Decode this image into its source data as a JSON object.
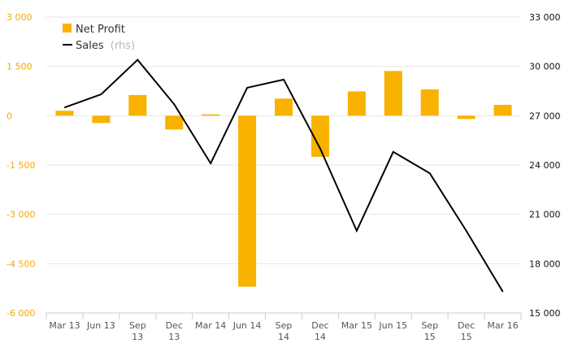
{
  "colors": {
    "bar": "#f9b200",
    "line": "#000000",
    "grid": "#e6e6e6",
    "left_tick": "#f5a800",
    "right_tick": "#111111",
    "axis_line": "#cccccc"
  },
  "legend": {
    "items": [
      {
        "label": "Net Profit",
        "sublabel": "",
        "marker": "square",
        "series": "Net Profit"
      },
      {
        "label": "Sales",
        "sublabel": "(rhs)",
        "marker": "line",
        "series": "Sales"
      }
    ]
  },
  "chart_data": {
    "type": "bar+line",
    "categories": [
      [
        "Mar 13"
      ],
      [
        "Jun 13"
      ],
      [
        "Sep",
        "13"
      ],
      [
        "Dec",
        "13"
      ],
      [
        "Mar 14"
      ],
      [
        "Jun 14"
      ],
      [
        "Sep",
        "14"
      ],
      [
        "Dec",
        "14"
      ],
      [
        "Mar 15"
      ],
      [
        "Jun 15"
      ],
      [
        "Sep",
        "15"
      ],
      [
        "Dec",
        "15"
      ],
      [
        "Mar 16"
      ]
    ],
    "series": [
      {
        "name": "Net Profit",
        "type": "bar",
        "axis": "left",
        "values": [
          150,
          -220,
          630,
          -420,
          40,
          -5200,
          520,
          -1250,
          740,
          1360,
          800,
          -100,
          330
        ]
      },
      {
        "name": "Sales",
        "type": "line",
        "axis": "right",
        "values": [
          27500,
          28300,
          30400,
          27700,
          24100,
          28700,
          29200,
          25000,
          20000,
          24800,
          23500,
          20000,
          16300
        ]
      }
    ],
    "y_left": {
      "min": -6000,
      "max": 3000,
      "ticks": [
        3000,
        1500,
        0,
        -1500,
        -3000,
        -4500,
        -6000
      ],
      "tick_labels": [
        "3 000",
        "1 500",
        "0",
        "-1 500",
        "-3 000",
        "-4 500",
        "-6 000"
      ]
    },
    "y_right": {
      "min": 15000,
      "max": 33000,
      "ticks": [
        33000,
        30000,
        27000,
        24000,
        21000,
        18000,
        15000
      ],
      "tick_labels": [
        "33 000",
        "30 000",
        "27 000",
        "24 000",
        "21 000",
        "18 000",
        "15 000"
      ]
    },
    "grid": true,
    "legend_position": "top-left"
  }
}
